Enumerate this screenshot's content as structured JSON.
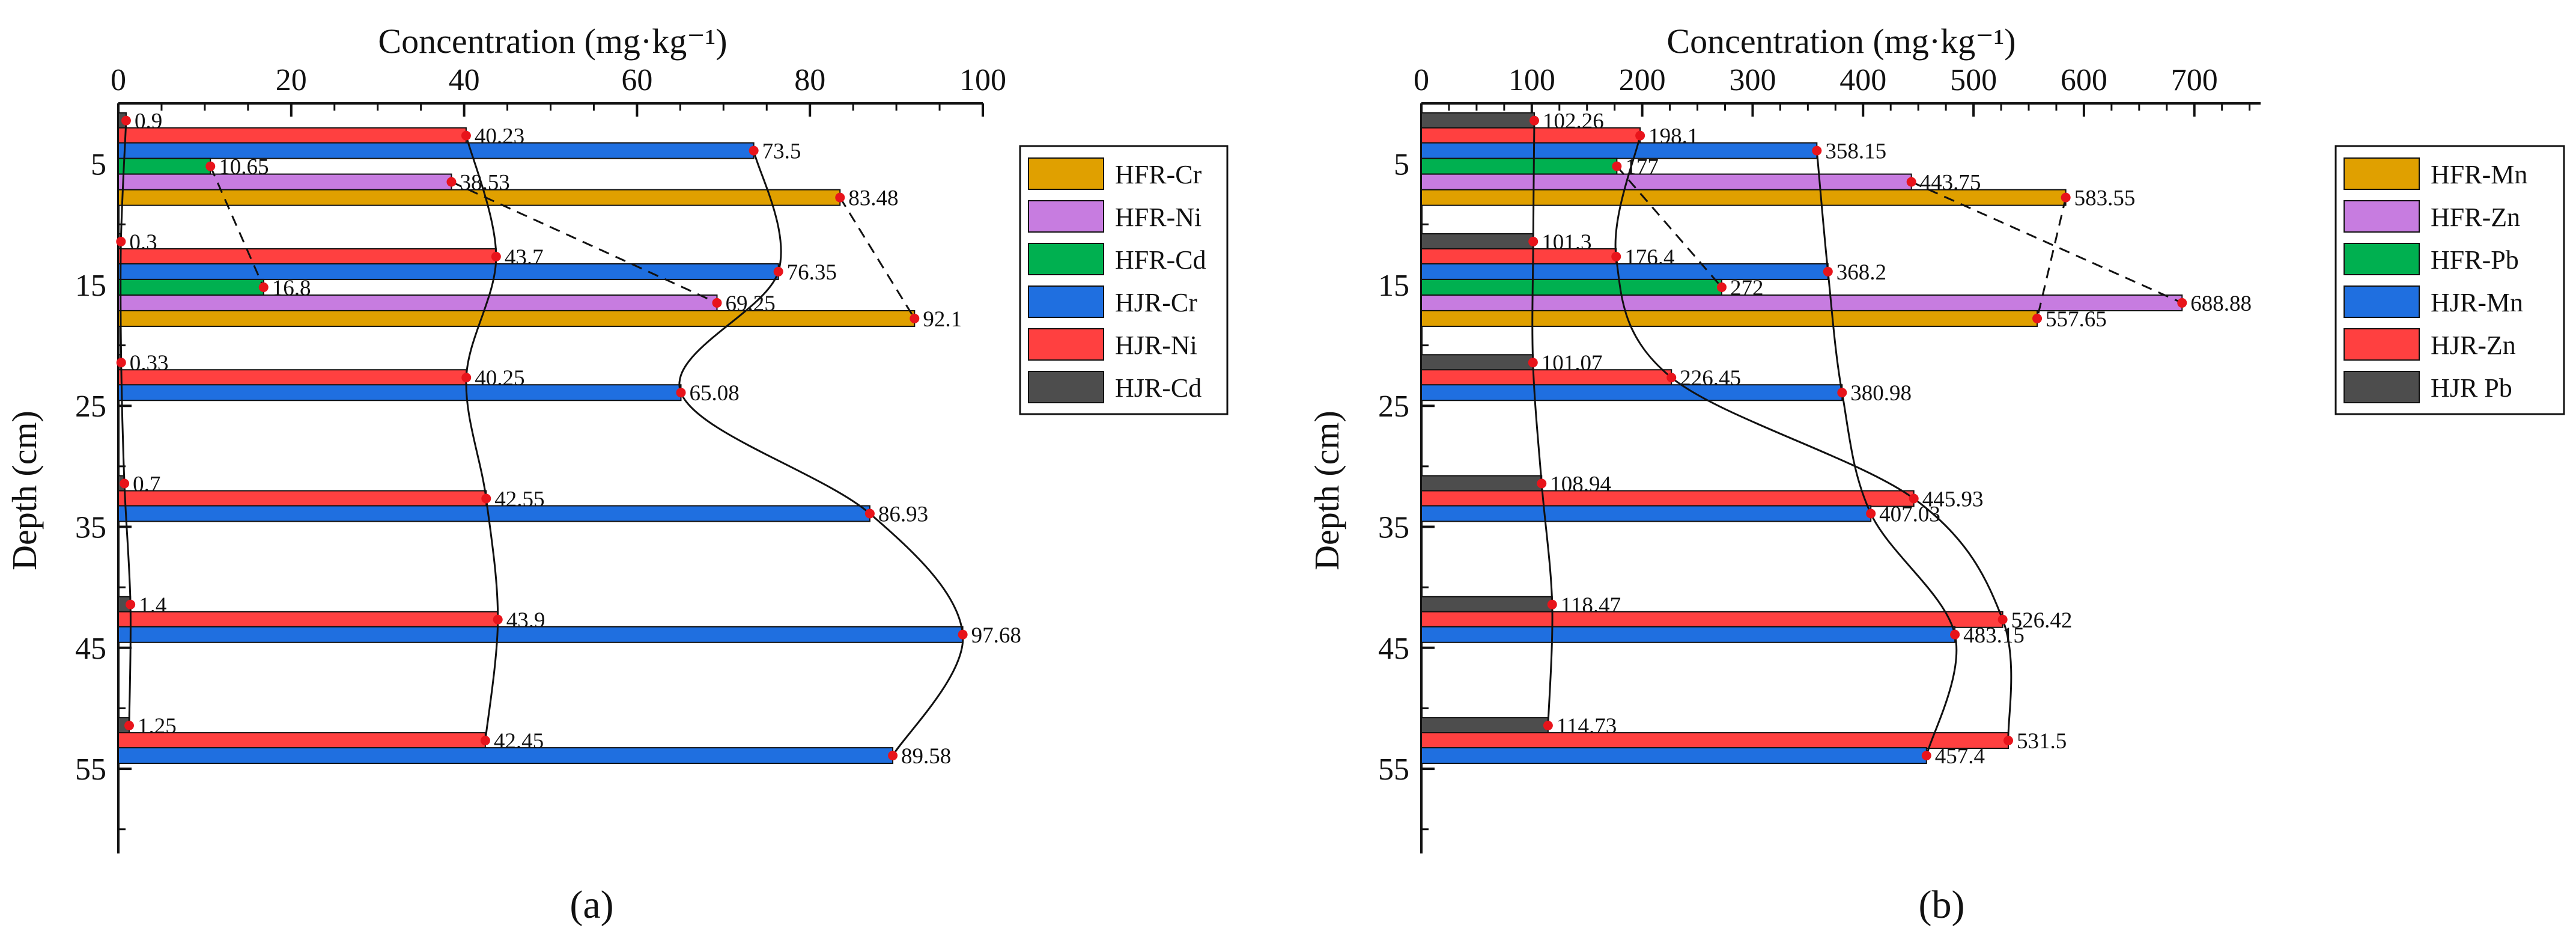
{
  "chart_data": [
    {
      "type": "bar",
      "orientation": "horizontal",
      "caption": "(a)",
      "xlabel": "Concentration (mg·kg⁻¹)",
      "ylabel": "Depth (cm)",
      "xlim": [
        0,
        100
      ],
      "x_ticks": [
        0,
        20,
        40,
        60,
        80,
        100
      ],
      "y_ticks": [
        5,
        15,
        25,
        35,
        45,
        55
      ],
      "ylim": [
        0,
        62
      ],
      "gridlines": false,
      "legend_position": "top-right",
      "groups": [
        {
          "depth": 5,
          "series": [
            {
              "name": "HJR-Cd",
              "value": 0.9,
              "label": "0.9"
            },
            {
              "name": "HJR-Ni",
              "value": 40.23,
              "label": "40.23"
            },
            {
              "name": "HJR-Cr",
              "value": 73.5,
              "label": "73.5"
            },
            {
              "name": "HFR-Cd",
              "value": 10.65,
              "label": "10.65"
            },
            {
              "name": "HFR-Ni",
              "value": 38.53,
              "label": "38.53"
            },
            {
              "name": "HFR-Cr",
              "value": 83.48,
              "label": "83.48"
            }
          ]
        },
        {
          "depth": 15,
          "series": [
            {
              "name": "HJR-Cd",
              "value": 0.3,
              "label": "0.3"
            },
            {
              "name": "HJR-Ni",
              "value": 43.7,
              "label": "43.7"
            },
            {
              "name": "HJR-Cr",
              "value": 76.35,
              "label": "76.35"
            },
            {
              "name": "HFR-Cd",
              "value": 16.8,
              "label": "16.8"
            },
            {
              "name": "HFR-Ni",
              "value": 69.25,
              "label": "69.25"
            },
            {
              "name": "HFR-Cr",
              "value": 92.1,
              "label": "92.1"
            }
          ]
        },
        {
          "depth": 25,
          "series": [
            {
              "name": "HJR-Cd",
              "value": 0.33,
              "label": "0.33"
            },
            {
              "name": "HJR-Ni",
              "value": 40.25,
              "label": "40.25"
            },
            {
              "name": "HJR-Cr",
              "value": 65.08,
              "label": "65.08"
            }
          ]
        },
        {
          "depth": 35,
          "series": [
            {
              "name": "HJR-Cd",
              "value": 0.7,
              "label": "0.7"
            },
            {
              "name": "HJR-Ni",
              "value": 42.55,
              "label": "42.55"
            },
            {
              "name": "HJR-Cr",
              "value": 86.93,
              "label": "86.93"
            }
          ]
        },
        {
          "depth": 45,
          "series": [
            {
              "name": "HJR-Cd",
              "value": 1.4,
              "label": "1.4"
            },
            {
              "name": "HJR-Ni",
              "value": 43.9,
              "label": "43.9"
            },
            {
              "name": "HJR-Cr",
              "value": 97.68,
              "label": "97.68"
            }
          ]
        },
        {
          "depth": 55,
          "series": [
            {
              "name": "HJR-Cd",
              "value": 1.25,
              "label": "1.25"
            },
            {
              "name": "HJR-Ni",
              "value": 42.45,
              "label": "42.45"
            },
            {
              "name": "HJR-Cr",
              "value": 89.58,
              "label": "89.58"
            }
          ]
        }
      ],
      "legend": [
        {
          "name": "HFR-Cr",
          "color": "#E0A000"
        },
        {
          "name": "HFR-Ni",
          "color": "#C77CE0"
        },
        {
          "name": "HFR-Cd",
          "color": "#00B050"
        },
        {
          "name": "HJR-Cr",
          "color": "#1F6FE0"
        },
        {
          "name": "HJR-Ni",
          "color": "#FF4040"
        },
        {
          "name": "HJR-Cd",
          "color": "#4D4D4D"
        }
      ],
      "profile_lines": [
        {
          "series": "HJR-Cd",
          "style": "solid"
        },
        {
          "series": "HJR-Ni",
          "style": "solid"
        },
        {
          "series": "HJR-Cr",
          "style": "solid"
        },
        {
          "series": "HFR-Cd",
          "style": "dashed"
        },
        {
          "series": "HFR-Ni",
          "style": "dashed"
        },
        {
          "series": "HFR-Cr",
          "style": "dashed"
        }
      ]
    },
    {
      "type": "bar",
      "orientation": "horizontal",
      "caption": "(b)",
      "xlabel": "Concentration (mg·kg⁻¹)",
      "ylabel": "Depth (cm)",
      "xlim": [
        0,
        760
      ],
      "x_ticks": [
        0,
        100,
        200,
        300,
        400,
        500,
        600,
        700
      ],
      "y_ticks": [
        5,
        15,
        25,
        35,
        45,
        55
      ],
      "ylim": [
        0,
        62
      ],
      "gridlines": false,
      "legend_position": "top-right",
      "groups": [
        {
          "depth": 5,
          "series": [
            {
              "name": "HJR-Pb",
              "value": 102.26,
              "label": "102.26"
            },
            {
              "name": "HJR-Zn",
              "value": 198.1,
              "label": "198.1"
            },
            {
              "name": "HJR-Mn",
              "value": 358.15,
              "label": "358.15"
            },
            {
              "name": "HFR-Pb",
              "value": 177,
              "label": "177"
            },
            {
              "name": "HFR-Zn",
              "value": 443.75,
              "label": "443.75"
            },
            {
              "name": "HFR-Mn",
              "value": 583.55,
              "label": "583.55"
            }
          ]
        },
        {
          "depth": 15,
          "series": [
            {
              "name": "HJR-Pb",
              "value": 101.3,
              "label": "101.3"
            },
            {
              "name": "HJR-Zn",
              "value": 176.4,
              "label": "176.4"
            },
            {
              "name": "HJR-Mn",
              "value": 368.2,
              "label": "368.2"
            },
            {
              "name": "HFR-Pb",
              "value": 272,
              "label": "272"
            },
            {
              "name": "HFR-Zn",
              "value": 688.88,
              "label": "688.88"
            },
            {
              "name": "HFR-Mn",
              "value": 557.65,
              "label": "557.65"
            }
          ]
        },
        {
          "depth": 25,
          "series": [
            {
              "name": "HJR-Pb",
              "value": 101.07,
              "label": "101.07"
            },
            {
              "name": "HJR-Zn",
              "value": 226.45,
              "label": "226.45"
            },
            {
              "name": "HJR-Mn",
              "value": 380.98,
              "label": "380.98"
            }
          ]
        },
        {
          "depth": 35,
          "series": [
            {
              "name": "HJR-Pb",
              "value": 108.94,
              "label": "108.94"
            },
            {
              "name": "HJR-Zn",
              "value": 445.93,
              "label": "445.93"
            },
            {
              "name": "HJR-Mn",
              "value": 407.03,
              "label": "407.03"
            }
          ]
        },
        {
          "depth": 45,
          "series": [
            {
              "name": "HJR-Pb",
              "value": 118.47,
              "label": "118.47"
            },
            {
              "name": "HJR-Zn",
              "value": 526.42,
              "label": "526.42"
            },
            {
              "name": "HJR-Mn",
              "value": 483.15,
              "label": "483.15"
            }
          ]
        },
        {
          "depth": 55,
          "series": [
            {
              "name": "HJR-Pb",
              "value": 114.73,
              "label": "114.73"
            },
            {
              "name": "HJR-Zn",
              "value": 531.5,
              "label": "531.5"
            },
            {
              "name": "HJR-Mn",
              "value": 457.4,
              "label": "457.4"
            }
          ]
        }
      ],
      "legend": [
        {
          "name": "HFR-Mn",
          "color": "#E0A000"
        },
        {
          "name": "HFR-Zn",
          "color": "#C77CE0"
        },
        {
          "name": "HFR-Pb",
          "color": "#00B050"
        },
        {
          "name": "HJR-Mn",
          "color": "#1F6FE0"
        },
        {
          "name": "HJR-Zn",
          "color": "#FF4040"
        },
        {
          "name": "HJR Pb",
          "color": "#4D4D4D"
        }
      ],
      "profile_lines": [
        {
          "series": "HJR-Pb",
          "style": "solid"
        },
        {
          "series": "HJR-Zn",
          "style": "solid"
        },
        {
          "series": "HJR-Mn",
          "style": "solid"
        },
        {
          "series": "HFR-Pb",
          "style": "dashed"
        },
        {
          "series": "HFR-Zn",
          "style": "dashed"
        },
        {
          "series": "HFR-Mn",
          "style": "dashed"
        }
      ]
    }
  ]
}
